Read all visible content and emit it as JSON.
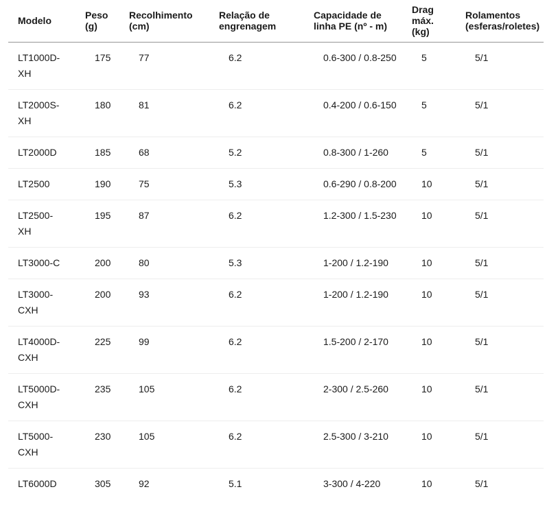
{
  "chart_data": {
    "type": "table",
    "title": "",
    "columns": [
      {
        "key": "modelo",
        "label": "Modelo"
      },
      {
        "key": "peso",
        "label": "Peso (g)"
      },
      {
        "key": "recolhimento",
        "label": "Recolhimento (cm)"
      },
      {
        "key": "relacao",
        "label": "Relação de engrenagem"
      },
      {
        "key": "capacidade",
        "label": "Capacidade de linha PE (nº - m)"
      },
      {
        "key": "drag",
        "label": "Drag máx. (kg)"
      },
      {
        "key": "rolamentos",
        "label": "Rolamentos (esferas/roletes)"
      }
    ],
    "rows": [
      {
        "modelo": "LT1000D-XH",
        "peso": "175",
        "recolhimento": "77",
        "relacao": "6.2",
        "capacidade": "0.6-300 / 0.8-250",
        "drag": "5",
        "rolamentos": "5/1"
      },
      {
        "modelo": "LT2000S-XH",
        "peso": "180",
        "recolhimento": "81",
        "relacao": "6.2",
        "capacidade": "0.4-200 / 0.6-150",
        "drag": "5",
        "rolamentos": "5/1"
      },
      {
        "modelo": "LT2000D",
        "peso": "185",
        "recolhimento": "68",
        "relacao": "5.2",
        "capacidade": "0.8-300 / 1-260",
        "drag": "5",
        "rolamentos": "5/1"
      },
      {
        "modelo": "LT2500",
        "peso": "190",
        "recolhimento": "75",
        "relacao": "5.3",
        "capacidade": "0.6-290 / 0.8-200",
        "drag": "10",
        "rolamentos": "5/1"
      },
      {
        "modelo": "LT2500-XH",
        "peso": "195",
        "recolhimento": "87",
        "relacao": "6.2",
        "capacidade": "1.2-300 / 1.5-230",
        "drag": "10",
        "rolamentos": "5/1"
      },
      {
        "modelo": "LT3000-C",
        "peso": "200",
        "recolhimento": "80",
        "relacao": "5.3",
        "capacidade": "1-200 / 1.2-190",
        "drag": "10",
        "rolamentos": "5/1"
      },
      {
        "modelo": "LT3000-CXH",
        "peso": "200",
        "recolhimento": "93",
        "relacao": "6.2",
        "capacidade": "1-200 / 1.2-190",
        "drag": "10",
        "rolamentos": "5/1"
      },
      {
        "modelo": "LT4000D-CXH",
        "peso": "225",
        "recolhimento": "99",
        "relacao": "6.2",
        "capacidade": "1.5-200 / 2-170",
        "drag": "10",
        "rolamentos": "5/1"
      },
      {
        "modelo": "LT5000D-CXH",
        "peso": "235",
        "recolhimento": "105",
        "relacao": "6.2",
        "capacidade": "2-300 / 2.5-260",
        "drag": "10",
        "rolamentos": "5/1"
      },
      {
        "modelo": "LT5000-CXH",
        "peso": "230",
        "recolhimento": "105",
        "relacao": "6.2",
        "capacidade": "2.5-300 / 3-210",
        "drag": "10",
        "rolamentos": "5/1"
      },
      {
        "modelo": "LT6000D",
        "peso": "305",
        "recolhimento": "92",
        "relacao": "5.1",
        "capacidade": "3-300 / 4-220",
        "drag": "10",
        "rolamentos": "5/1"
      }
    ],
    "layout": {
      "header_separator_color": "#949494",
      "row_separator_color": "#ededed",
      "text_color": "#1a1a1a",
      "background_color": "#ffffff"
    }
  }
}
